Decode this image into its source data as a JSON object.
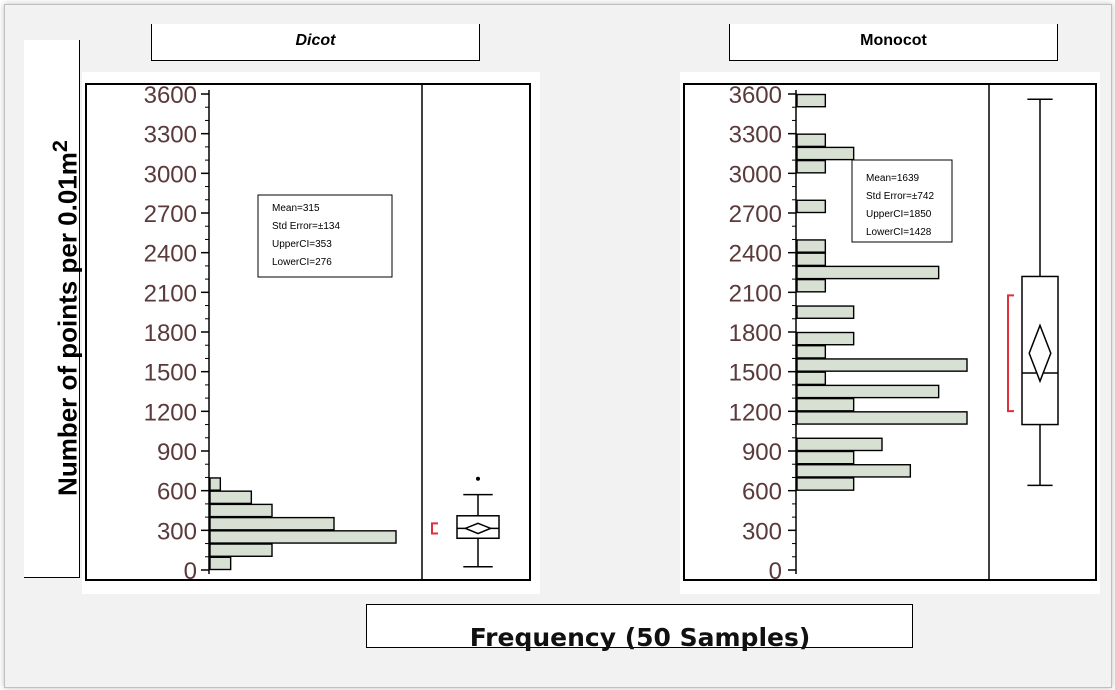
{
  "ylabel": "Number of points per 0.01m",
  "ylabel_sup": "2",
  "xlabel": "Frequency (50 Samples)",
  "colors": {
    "bar_fill": "#d7e0d2",
    "bar_stroke": "#000000",
    "ci_bracket": "#e0303c",
    "tick_text": "#5a3a3a"
  },
  "chart_data": [
    {
      "type": "bar",
      "orientation": "horizontal",
      "title": "Dicot",
      "ylim": [
        0,
        3600
      ],
      "yticks": [
        0,
        300,
        600,
        900,
        1200,
        1500,
        1800,
        2100,
        2400,
        2700,
        3000,
        3300,
        3600
      ],
      "bins": [
        {
          "from": 0,
          "to": 100,
          "count": 1
        },
        {
          "from": 100,
          "to": 200,
          "count": 3
        },
        {
          "from": 200,
          "to": 300,
          "count": 9
        },
        {
          "from": 300,
          "to": 400,
          "count": 6
        },
        {
          "from": 400,
          "to": 500,
          "count": 3
        },
        {
          "from": 500,
          "to": 600,
          "count": 2
        },
        {
          "from": 600,
          "to": 700,
          "count": 0.5
        }
      ],
      "max_count": 9,
      "stats": [
        "Mean=315",
        "Std Error=±134",
        "UpperCI=353",
        "LowerCI=276"
      ],
      "box": {
        "min": 25,
        "q1": 240,
        "median": 315,
        "q3": 410,
        "max": 570,
        "mean": 315,
        "outlier": 690,
        "ci": [
          276,
          353
        ]
      }
    },
    {
      "type": "bar",
      "orientation": "horizontal",
      "title": "Monocot",
      "ylim": [
        0,
        3600
      ],
      "yticks": [
        0,
        300,
        600,
        900,
        1200,
        1500,
        1800,
        2100,
        2400,
        2700,
        3000,
        3300,
        3600
      ],
      "bins": [
        {
          "from": 600,
          "to": 700,
          "count": 2
        },
        {
          "from": 700,
          "to": 800,
          "count": 4
        },
        {
          "from": 800,
          "to": 900,
          "count": 2
        },
        {
          "from": 900,
          "to": 1000,
          "count": 3
        },
        {
          "from": 1000,
          "to": 1100,
          "count": 0
        },
        {
          "from": 1100,
          "to": 1200,
          "count": 6
        },
        {
          "from": 1200,
          "to": 1300,
          "count": 2
        },
        {
          "from": 1300,
          "to": 1400,
          "count": 5
        },
        {
          "from": 1400,
          "to": 1500,
          "count": 1
        },
        {
          "from": 1500,
          "to": 1600,
          "count": 6
        },
        {
          "from": 1600,
          "to": 1700,
          "count": 1
        },
        {
          "from": 1700,
          "to": 1800,
          "count": 2
        },
        {
          "from": 1800,
          "to": 1900,
          "count": 0
        },
        {
          "from": 1900,
          "to": 2000,
          "count": 2
        },
        {
          "from": 2000,
          "to": 2100,
          "count": 0
        },
        {
          "from": 2100,
          "to": 2200,
          "count": 1
        },
        {
          "from": 2200,
          "to": 2300,
          "count": 5
        },
        {
          "from": 2300,
          "to": 2400,
          "count": 1
        },
        {
          "from": 2400,
          "to": 2500,
          "count": 1
        },
        {
          "from": 2700,
          "to": 2800,
          "count": 1
        },
        {
          "from": 3000,
          "to": 3100,
          "count": 1
        },
        {
          "from": 3100,
          "to": 3200,
          "count": 2
        },
        {
          "from": 3200,
          "to": 3300,
          "count": 1
        },
        {
          "from": 3500,
          "to": 3600,
          "count": 1
        }
      ],
      "max_count": 6,
      "stats": [
        "Mean=1639",
        "Std Error=±742",
        "UpperCI=1850",
        "LowerCI=1428"
      ],
      "box": {
        "min": 640,
        "q1": 1100,
        "median": 1490,
        "q3": 2220,
        "max": 3560,
        "mean": 1639,
        "ci": [
          1428,
          1850
        ]
      }
    }
  ]
}
